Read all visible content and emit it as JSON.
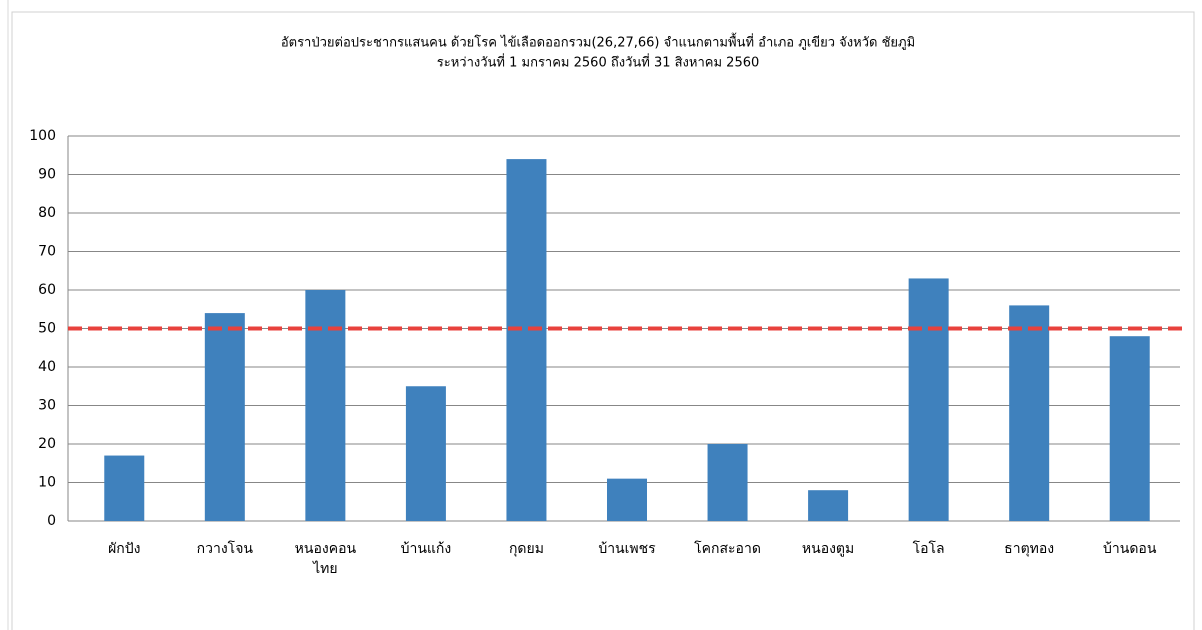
{
  "chart_data": {
    "type": "bar",
    "title": "อัตราป่วยต่อประชากรแสนคน ด้วยโรค ไข้เลือดออกรวม(26,27,66)  จำแนกตามพื้นที่     อำเภอ  ภูเขียว จังหวัด ชัยภูมิ",
    "subtitle": "ระหว่างวันที่  1 มกราคม 2560  ถึงวันที่  31 สิงหาคม 2560",
    "categories": [
      "ผักปัง",
      "กวางโจน",
      "หนองคอน\nไทย",
      "บ้านแก้ง",
      "กุดยม",
      "บ้านเพชร",
      "โคกสะอาด",
      "หนองตูม",
      "โอโล",
      "ธาตุทอง",
      "บ้านดอน"
    ],
    "values": [
      17,
      54,
      60,
      35,
      94,
      11,
      20,
      8,
      63,
      56,
      48
    ],
    "color": "#3f81bd",
    "ylim": [
      0,
      100
    ],
    "yticks": [
      0,
      10,
      20,
      30,
      40,
      50,
      60,
      70,
      80,
      90,
      100
    ],
    "grid": true,
    "reference_line": {
      "value": 50,
      "color": "#e8413c"
    }
  }
}
